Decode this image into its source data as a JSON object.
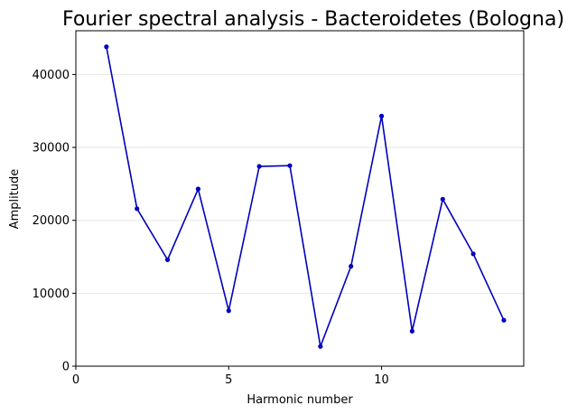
{
  "chart_data": {
    "type": "line",
    "title": "Fourier spectral analysis - Bacteroidetes (Bologna)",
    "xlabel": "Harmonic number",
    "ylabel": "Amplitude",
    "xlim": [
      0,
      14.65
    ],
    "ylim": [
      0,
      46000
    ],
    "xticks": [
      0,
      5,
      10
    ],
    "yticks": [
      0,
      10000,
      20000,
      30000,
      40000
    ],
    "grid": "horizontal",
    "series": [
      {
        "color": "#0000bb",
        "x": [
          1,
          2,
          3,
          4,
          5,
          6,
          7,
          8,
          9,
          10,
          11,
          12,
          13,
          14
        ],
        "values": [
          43800,
          21600,
          14600,
          24300,
          7600,
          27400,
          27500,
          2700,
          13700,
          34300,
          4800,
          22900,
          15400,
          6300
        ]
      }
    ]
  }
}
